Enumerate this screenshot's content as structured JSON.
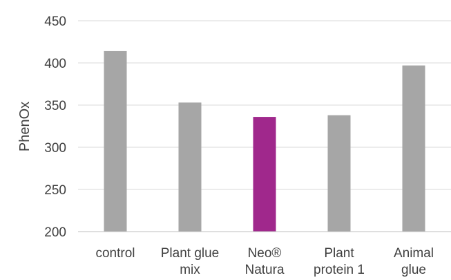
{
  "chart_data": {
    "type": "bar",
    "title": "",
    "xlabel": "",
    "ylabel": "PhenOx",
    "ylim": [
      200,
      450
    ],
    "yticks": [
      "200",
      "250",
      "300",
      "350",
      "400",
      "450"
    ],
    "grid": true,
    "legend": "none",
    "categories": [
      [
        "control"
      ],
      [
        "Plant glue",
        "mix"
      ],
      [
        "Neo®",
        "Natura"
      ],
      [
        "Plant",
        "protein 1"
      ],
      [
        "Animal",
        "glue"
      ]
    ],
    "values": [
      414,
      353,
      336,
      338,
      397
    ],
    "colors": [
      "#a6a6a6",
      "#a6a6a6",
      "#a0288c",
      "#a6a6a6",
      "#a6a6a6"
    ],
    "gridline_color": "#d9d9d9",
    "axis_color": "#bfbfbf"
  }
}
